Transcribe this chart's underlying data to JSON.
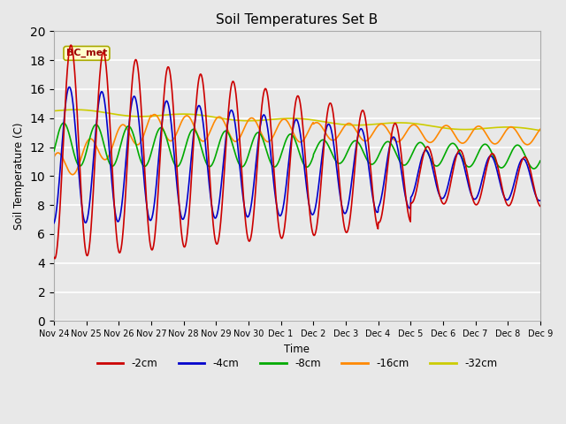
{
  "title": "Soil Temperatures Set B",
  "xlabel": "Time",
  "ylabel": "Soil Temperature (C)",
  "annotation": "BC_met",
  "ylim": [
    0,
    20
  ],
  "bg_color": "#e8e8e8",
  "xtick_labels": [
    "Nov 24",
    "Nov 25",
    "Nov 26",
    "Nov 27",
    "Nov 28",
    "Nov 29",
    "Nov 30",
    "Dec 1",
    "Dec 2",
    "Dec 3",
    "Dec 4",
    "Dec 5",
    "Dec 6",
    "Dec 7",
    "Dec 8",
    "Dec 9"
  ],
  "series": {
    "-2cm": {
      "color": "#cc0000",
      "lw": 1.2
    },
    "-4cm": {
      "color": "#0000cc",
      "lw": 1.2
    },
    "-8cm": {
      "color": "#00aa00",
      "lw": 1.2
    },
    "-16cm": {
      "color": "#ff8800",
      "lw": 1.2
    },
    "-32cm": {
      "color": "#cccc00",
      "lw": 1.2
    }
  }
}
